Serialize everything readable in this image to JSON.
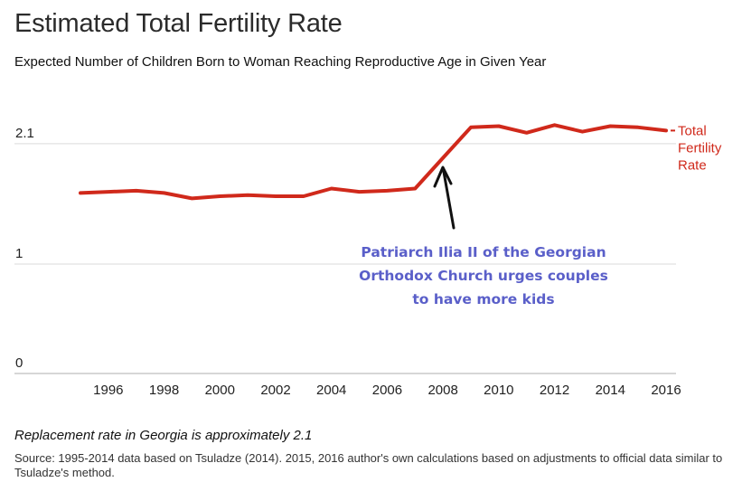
{
  "chart_data": {
    "type": "line",
    "title": "Estimated Total Fertility Rate",
    "subtitle": "Expected Number of Children Born to Woman Reaching Reproductive Age in Given Year",
    "xlabel": "",
    "ylabel": "",
    "x_ticks": [
      "1996",
      "1998",
      "2000",
      "2002",
      "2004",
      "2006",
      "2008",
      "2010",
      "2012",
      "2014",
      "2016"
    ],
    "y_ticks": [
      "0",
      "1",
      "2.1"
    ],
    "y_tick_values": [
      0,
      1,
      2.1
    ],
    "xlim": [
      1994.5,
      2016.5
    ],
    "ylim": [
      0,
      2.2
    ],
    "grid": true,
    "series": [
      {
        "name": "Total Fertility Rate",
        "label_lines": [
          "Total",
          "Fertility",
          "Rate"
        ],
        "color": "#d0291b",
        "x": [
          1995,
          1996,
          1997,
          1998,
          1999,
          2000,
          2001,
          2002,
          2003,
          2004,
          2005,
          2006,
          2007,
          2008,
          2009,
          2010,
          2011,
          2012,
          2013,
          2014,
          2015,
          2016
        ],
        "values": [
          1.65,
          1.66,
          1.67,
          1.65,
          1.6,
          1.62,
          1.63,
          1.62,
          1.62,
          1.69,
          1.66,
          1.67,
          1.69,
          1.97,
          2.25,
          2.26,
          2.2,
          2.27,
          2.21,
          2.26,
          2.25,
          2.22
        ]
      }
    ],
    "annotation": {
      "lines": [
        "Patriarch Ilia II of the Georgian",
        "Orthodox Church urges couples",
        "to have more kids"
      ],
      "color": "#5a5fc9",
      "points_to_x": 2008
    }
  },
  "footer": {
    "note": "Replacement rate in Georgia is approximately 2.1",
    "source": "Source: 1995-2014 data based on Tsuladze (2014). 2015, 2016 author's own calculations based on adjustments to official data similar to Tsuladze's method."
  }
}
